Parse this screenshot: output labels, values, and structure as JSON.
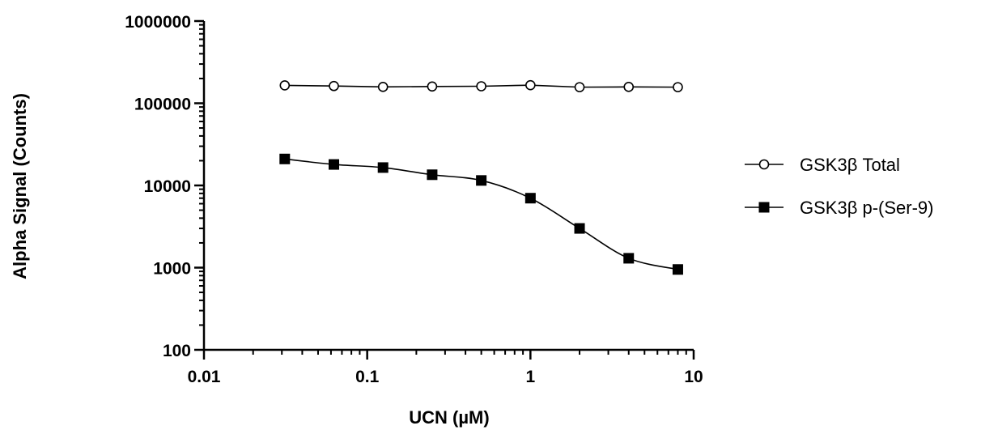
{
  "chart_data": {
    "type": "line",
    "xlabel": "UCN (µM)",
    "ylabel": "Alpha Signal (Counts)",
    "xscale": "log",
    "yscale": "log",
    "xlim": [
      0.01,
      10
    ],
    "ylim": [
      100,
      1000000
    ],
    "xticks": [
      {
        "value": 0.01,
        "label": "0.01"
      },
      {
        "value": 0.1,
        "label": "0.1"
      },
      {
        "value": 1,
        "label": "1"
      },
      {
        "value": 10,
        "label": "10"
      }
    ],
    "yticks": [
      {
        "value": 100,
        "label": "100"
      },
      {
        "value": 1000,
        "label": "1000"
      },
      {
        "value": 10000,
        "label": "10000"
      },
      {
        "value": 100000,
        "label": "100000"
      },
      {
        "value": 1000000,
        "label": "1000000"
      }
    ],
    "grid": false,
    "legend_position": "right",
    "x": [
      0.03125,
      0.0625,
      0.125,
      0.25,
      0.5,
      1,
      2,
      4,
      8
    ],
    "series": [
      {
        "name": "GSK3β Total",
        "marker": "open-circle",
        "color": "#000000",
        "values": [
          165000,
          162000,
          158000,
          160000,
          161000,
          166000,
          157000,
          158000,
          157000
        ]
      },
      {
        "name": "GSK3β p-(Ser-9)",
        "marker": "filled-square",
        "color": "#000000",
        "values": [
          21000,
          18000,
          16500,
          13500,
          11500,
          7000,
          3000,
          1300,
          950
        ]
      }
    ]
  }
}
